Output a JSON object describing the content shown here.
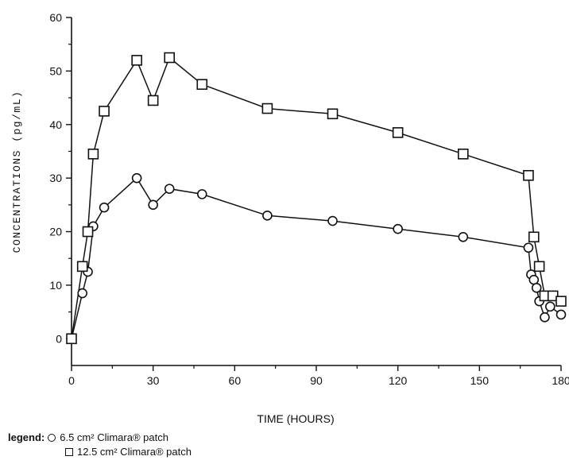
{
  "chart_data": {
    "type": "line",
    "title": "",
    "xlabel": "TIME (HOURS)",
    "ylabel": "CONCENTRATIONS (pg/mL)",
    "xlim": [
      0,
      180
    ],
    "ylim": [
      -5,
      60
    ],
    "x_ticks": [
      0,
      30,
      60,
      90,
      120,
      150,
      180
    ],
    "y_ticks": [
      0,
      10,
      20,
      30,
      40,
      50,
      60
    ],
    "grid": false,
    "legend": {
      "position": "bottom-left",
      "title": "legend:",
      "entries": [
        "6.5 cm² Climara® patch",
        "12.5 cm² Climara® patch"
      ]
    },
    "series": [
      {
        "name": "6.5 cm² Climara® patch",
        "marker": "circle",
        "x": [
          0,
          4,
          6,
          8,
          12,
          24,
          30,
          36,
          48,
          72,
          96,
          120,
          144,
          168,
          169,
          170,
          171,
          172,
          174,
          176,
          180
        ],
        "y": [
          0,
          8.5,
          12.5,
          21,
          24.5,
          30,
          25,
          28,
          27,
          23,
          22,
          20.5,
          19,
          17,
          12,
          11,
          9.5,
          7,
          4,
          6,
          4.5
        ]
      },
      {
        "name": "12.5 cm² Climara® patch",
        "marker": "square",
        "x": [
          0,
          4,
          6,
          8,
          12,
          24,
          30,
          36,
          48,
          72,
          96,
          120,
          144,
          168,
          170,
          172,
          174,
          177,
          180
        ],
        "y": [
          0,
          13.5,
          20,
          34.5,
          42.5,
          52,
          44.5,
          52.5,
          47.5,
          43,
          42,
          38.5,
          34.5,
          30.5,
          19,
          13.5,
          8,
          8,
          7
        ]
      }
    ]
  },
  "colors": {
    "ink": "#111111",
    "background": "#ffffff"
  }
}
